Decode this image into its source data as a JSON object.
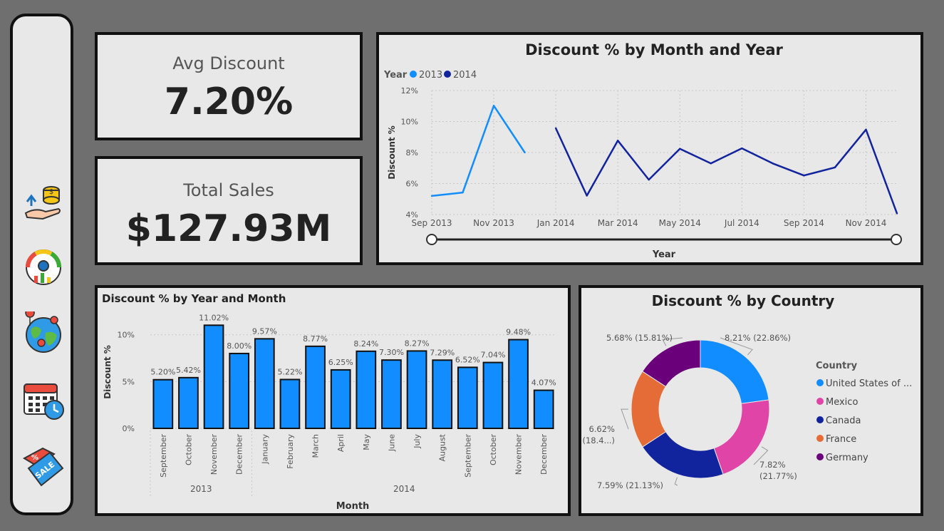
{
  "kpis": {
    "avg_discount": {
      "label": "Avg Discount",
      "value": "7.20%"
    },
    "total_sales": {
      "label": "Total Sales",
      "value": "$127.93M"
    }
  },
  "sidebar": {
    "icons": [
      "finance-coins-icon",
      "gauge-dashboard-icon",
      "globe-map-icon",
      "calendar-clock-icon",
      "sale-tag-icon"
    ]
  },
  "colors": {
    "c2013": "#118DFF",
    "c2014": "#12239E",
    "mexico": "#E044A7",
    "france": "#E66C37",
    "germany": "#6B007B"
  },
  "chart_data": [
    {
      "id": "line",
      "type": "line",
      "title": "Discount % by Month and Year",
      "legend_title": "Year",
      "xlabel": "Year",
      "ylabel": "Discount %",
      "ylim": [
        4,
        12
      ],
      "yticks": [
        4,
        6,
        8,
        10,
        12
      ],
      "ytick_labels": [
        "4%",
        "6%",
        "8%",
        "10%",
        "12%"
      ],
      "xtick_labels": [
        "Sep 2013",
        "Nov 2013",
        "Jan 2014",
        "Mar 2014",
        "May 2014",
        "Jul 2014",
        "Sep 2014",
        "Nov 2014"
      ],
      "legend_position": "top-left",
      "grid": true,
      "series": [
        {
          "name": "2013",
          "x": [
            "Sep 2013",
            "Oct 2013",
            "Nov 2013",
            "Dec 2013"
          ],
          "values": [
            5.2,
            5.42,
            11.02,
            8.0
          ]
        },
        {
          "name": "2014",
          "x": [
            "Jan 2014",
            "Feb 2014",
            "Mar 2014",
            "Apr 2014",
            "May 2014",
            "Jun 2014",
            "Jul 2014",
            "Aug 2014",
            "Sep 2014",
            "Oct 2014",
            "Nov 2014",
            "Dec 2014"
          ],
          "values": [
            9.57,
            5.22,
            8.77,
            6.25,
            8.24,
            7.3,
            8.27,
            7.29,
            6.52,
            7.04,
            9.48,
            4.07
          ]
        }
      ]
    },
    {
      "id": "bar",
      "type": "bar",
      "title": "Discount % by Year and Month",
      "xlabel": "Month",
      "ylabel": "Discount %",
      "ylim": [
        0,
        11.5
      ],
      "yticks": [
        0,
        5,
        10
      ],
      "ytick_labels": [
        "0%",
        "5%",
        "10%"
      ],
      "grid": true,
      "categories": [
        "September",
        "October",
        "November",
        "December",
        "January",
        "February",
        "March",
        "April",
        "May",
        "June",
        "July",
        "August",
        "September",
        "October",
        "November",
        "December"
      ],
      "groups": [
        {
          "label": "2013",
          "count": 4
        },
        {
          "label": "2014",
          "count": 12
        }
      ],
      "values": [
        5.2,
        5.42,
        11.02,
        8.0,
        9.57,
        5.22,
        8.77,
        6.25,
        8.24,
        7.3,
        8.27,
        7.29,
        6.52,
        7.04,
        9.48,
        4.07
      ],
      "value_labels": [
        "5.20%",
        "5.42%",
        "11.02%",
        "8.00%",
        "9.57%",
        "5.22%",
        "8.77%",
        "6.25%",
        "8.24%",
        "7.30%",
        "8.27%",
        "7.29%",
        "6.52%",
        "7.04%",
        "9.48%",
        "4.07%"
      ]
    },
    {
      "id": "donut",
      "type": "pie",
      "title": "Discount % by Country",
      "legend_title": "Country",
      "legend_position": "right",
      "categories": [
        "United States of ...",
        "Mexico",
        "Canada",
        "France",
        "Germany"
      ],
      "values": [
        22.86,
        21.77,
        21.13,
        18.4,
        15.81
      ],
      "labels": [
        [
          "8.21% (22.86%)"
        ],
        [
          "7.82%",
          "(21.77%)"
        ],
        [
          "7.59% (21.13%)"
        ],
        [
          "6.62%",
          "(18.4...)"
        ],
        [
          "5.68% (15.81%)"
        ]
      ]
    }
  ]
}
